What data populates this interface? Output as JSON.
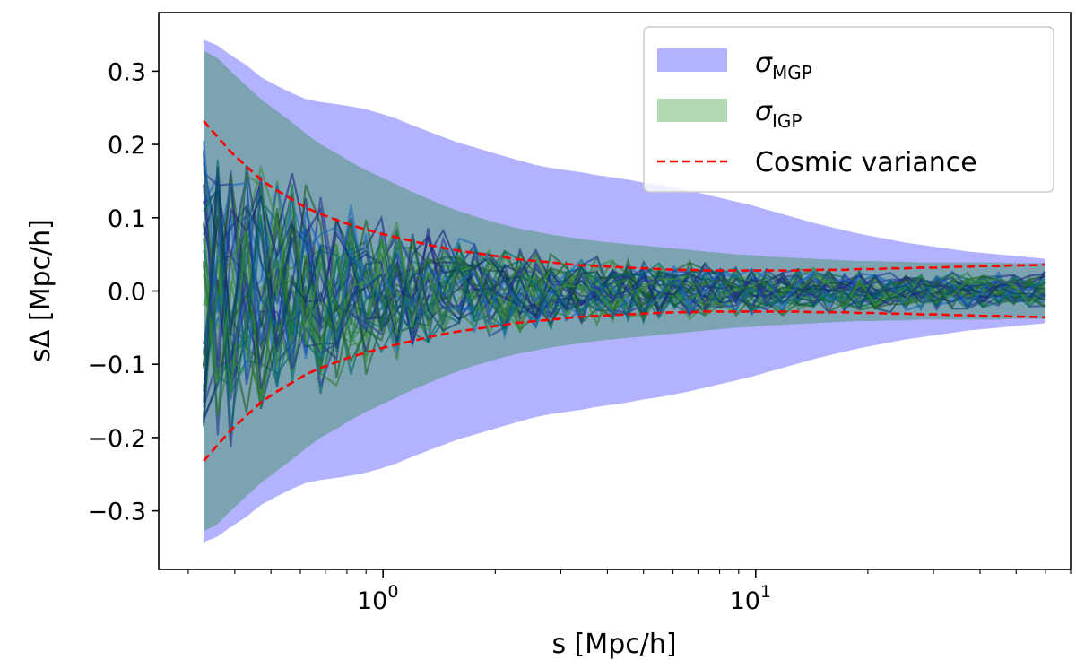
{
  "chart_data": {
    "type": "line",
    "title": "",
    "xlabel": "s [Mpc/h]",
    "ylabel": "sΔ   [Mpc/h]",
    "xscale": "log",
    "xlim": [
      0.25,
      70
    ],
    "ylim": [
      -0.38,
      0.38
    ],
    "yticks": [
      -0.3,
      -0.2,
      -0.1,
      0.0,
      0.1,
      0.2,
      0.3
    ],
    "ytick_labels": [
      "−0.3",
      "−0.2",
      "−0.1",
      "0.0",
      "0.1",
      "0.2",
      "0.3"
    ],
    "xticks": [
      {
        "value": 1,
        "base": "10",
        "exp": "0"
      },
      {
        "value": 10,
        "base": "10",
        "exp": "1"
      }
    ],
    "grid": false,
    "legend_position": "top-right",
    "legend": [
      {
        "kind": "band",
        "symbol": "σ",
        "sub": "MGP",
        "color": "#0000ff",
        "alpha": 0.3
      },
      {
        "kind": "band",
        "symbol": "σ",
        "sub": "IGP",
        "color": "#008000",
        "alpha": 0.3
      },
      {
        "kind": "dashed",
        "label": "Cosmic variance",
        "color": "#ff0000"
      }
    ],
    "x": [
      0.33,
      0.36,
      0.39,
      0.43,
      0.47,
      0.52,
      0.57,
      0.62,
      0.68,
      0.75,
      0.82,
      0.9,
      0.99,
      1.09,
      1.2,
      1.32,
      1.45,
      1.6,
      1.76,
      1.93,
      2.12,
      2.33,
      2.57,
      2.82,
      3.1,
      3.41,
      3.75,
      4.13,
      4.54,
      5.0,
      5.5,
      6.05,
      6.65,
      7.3,
      8.05,
      8.85,
      9.75,
      10.7,
      11.8,
      13.0,
      14.3,
      15.7,
      17.3,
      19.0,
      20.9,
      23.0,
      25.3,
      27.8,
      30.6,
      33.7,
      37.0,
      40.7,
      44.8,
      49.3,
      54.2,
      59.6
    ],
    "bands": [
      {
        "name": "σ_MGP",
        "color": "#0000ff",
        "alpha": 0.3,
        "upper": [
          0.343,
          0.335,
          0.322,
          0.308,
          0.292,
          0.28,
          0.27,
          0.262,
          0.258,
          0.255,
          0.252,
          0.248,
          0.242,
          0.235,
          0.226,
          0.218,
          0.21,
          0.202,
          0.196,
          0.19,
          0.184,
          0.178,
          0.172,
          0.168,
          0.165,
          0.162,
          0.158,
          0.155,
          0.152,
          0.148,
          0.145,
          0.141,
          0.137,
          0.132,
          0.127,
          0.122,
          0.117,
          0.111,
          0.105,
          0.099,
          0.093,
          0.088,
          0.083,
          0.078,
          0.074,
          0.07,
          0.066,
          0.063,
          0.06,
          0.057,
          0.054,
          0.052,
          0.05,
          0.048,
          0.046,
          0.044
        ]
      },
      {
        "name": "σ_IGP",
        "color": "#008000",
        "alpha": 0.3,
        "upper": [
          0.328,
          0.318,
          0.3,
          0.28,
          0.262,
          0.245,
          0.23,
          0.215,
          0.2,
          0.188,
          0.176,
          0.165,
          0.155,
          0.145,
          0.135,
          0.126,
          0.117,
          0.109,
          0.102,
          0.096,
          0.09,
          0.085,
          0.081,
          0.077,
          0.074,
          0.071,
          0.068,
          0.066,
          0.064,
          0.062,
          0.06,
          0.058,
          0.056,
          0.054,
          0.052,
          0.05,
          0.049,
          0.047,
          0.046,
          0.045,
          0.044,
          0.043,
          0.042,
          0.041,
          0.041,
          0.04,
          0.04,
          0.039,
          0.039,
          0.039,
          0.039,
          0.039,
          0.039,
          0.038,
          0.038,
          0.038
        ]
      }
    ],
    "cosmic_variance": [
      0.232,
      0.21,
      0.19,
      0.17,
      0.152,
      0.137,
      0.125,
      0.114,
      0.105,
      0.097,
      0.09,
      0.084,
      0.078,
      0.073,
      0.068,
      0.063,
      0.059,
      0.055,
      0.052,
      0.049,
      0.046,
      0.043,
      0.041,
      0.039,
      0.037,
      0.035,
      0.034,
      0.033,
      0.032,
      0.031,
      0.03,
      0.029,
      0.029,
      0.028,
      0.028,
      0.028,
      0.028,
      0.028,
      0.028,
      0.028,
      0.029,
      0.029,
      0.029,
      0.03,
      0.03,
      0.031,
      0.031,
      0.032,
      0.032,
      0.033,
      0.033,
      0.034,
      0.034,
      0.035,
      0.035,
      0.036
    ],
    "realization_lines": {
      "count": 40,
      "note": "noisy residual realizations oscillating around zero, amplitude shrinking with s",
      "colors": [
        "#1a237e",
        "#1b5e20",
        "#2e7d32",
        "#283593",
        "#00695c",
        "#1565c0",
        "#388e3c",
        "#0d3b66"
      ]
    }
  }
}
